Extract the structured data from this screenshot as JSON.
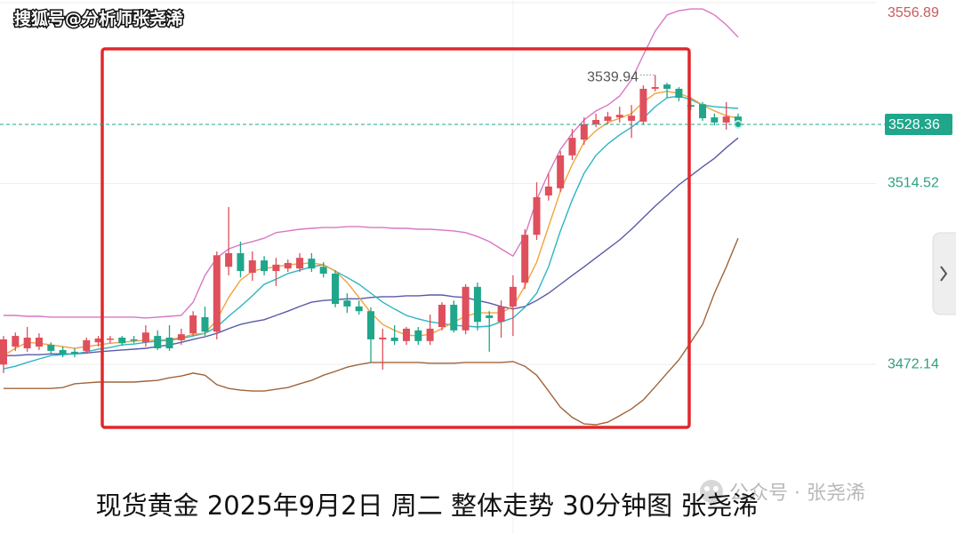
{
  "chart_data": {
    "type": "candlestick",
    "title": "现货黄金 2025年9月2日 周二 整体走势 30分钟图 张尧浠",
    "source_label": "搜狐号@分析师张尧浠",
    "watermark": "公众号 · 张尧浠",
    "ylim": [
      3432.4,
      3557.5
    ],
    "yticks": [
      3556.89,
      3514.52,
      3472.14
    ],
    "grid": true,
    "last_price": 3528.36,
    "high_marker": 3539.94,
    "up_color": "#df4f5c",
    "down_color": "#1fa68b",
    "axis_up_color": "#c95a5a",
    "axis_down_color": "#2e9f80",
    "open": [
      3472.1,
      3476.3,
      3475.9,
      3476.3,
      3476.7,
      3475.5,
      3475.1,
      3475.3,
      3477.3,
      3478.0,
      3478.4,
      3478.0,
      3477.3,
      3478.8,
      3478.4,
      3477.8,
      3479.4,
      3483.2,
      3479.8,
      3495.0,
      3498.2,
      3493.6,
      3496.5,
      3494.0,
      3494.6,
      3494.6,
      3496.9,
      3495.0,
      3493.4,
      3487.1,
      3485.7,
      3484.6,
      3478.0,
      3478.4,
      3477.6,
      3480.1,
      3477.6,
      3480.9,
      3486.1,
      3480.1,
      3490.3,
      3483.6,
      3482.1,
      3485.7,
      3491.3,
      3502.5,
      3511.7,
      3513.4,
      3521.1,
      3524.8,
      3528.4,
      3529.2,
      3530.0,
      3529.2,
      3529.0,
      3536.7,
      3537.7,
      3536.7,
      3532.9,
      3533.1,
      3530.0,
      3528.8,
      3530.2
    ],
    "high": [
      3478.8,
      3479.6,
      3480.9,
      3479.4,
      3477.3,
      3476.3,
      3475.9,
      3478.4,
      3478.8,
      3478.8,
      3478.8,
      3478.8,
      3481.3,
      3480.1,
      3481.3,
      3480.5,
      3484.6,
      3485.7,
      3498.6,
      3509.0,
      3500.9,
      3498.6,
      3497.5,
      3497.1,
      3496.7,
      3498.2,
      3498.2,
      3496.1,
      3494.2,
      3488.8,
      3487.1,
      3485.5,
      3480.5,
      3481.3,
      3480.9,
      3480.9,
      3483.8,
      3486.7,
      3487.1,
      3490.9,
      3491.3,
      3484.6,
      3487.1,
      3493.0,
      3503.8,
      3514.8,
      3516.9,
      3522.1,
      3527.3,
      3530.0,
      3530.9,
      3531.3,
      3532.5,
      3532.9,
      3537.5,
      3539.94,
      3538.1,
      3537.1,
      3534.6,
      3533.6,
      3530.9,
      3533.6,
      3530.9
    ],
    "low": [
      3470.1,
      3475.3,
      3475.1,
      3475.5,
      3474.6,
      3473.8,
      3473.8,
      3474.6,
      3476.3,
      3477.1,
      3476.5,
      3477.1,
      3476.3,
      3475.5,
      3475.3,
      3476.7,
      3478.8,
      3478.8,
      3478.0,
      3493.0,
      3492.5,
      3491.7,
      3493.0,
      3490.5,
      3493.8,
      3493.8,
      3493.8,
      3492.5,
      3485.5,
      3484.2,
      3483.8,
      3472.6,
      3470.9,
      3476.7,
      3476.7,
      3476.7,
      3476.7,
      3480.1,
      3479.6,
      3479.2,
      3480.1,
      3475.1,
      3478.4,
      3478.8,
      3489.8,
      3501.3,
      3510.5,
      3512.5,
      3520.0,
      3523.6,
      3527.7,
      3528.4,
      3528.8,
      3525.2,
      3528.4,
      3536.1,
      3534.6,
      3533.8,
      3531.7,
      3529.2,
      3528.1,
      3527.1,
      3527.9
    ],
    "close": [
      3478.0,
      3478.8,
      3478.4,
      3478.4,
      3475.3,
      3474.6,
      3474.6,
      3477.8,
      3478.2,
      3478.2,
      3477.1,
      3477.8,
      3479.6,
      3475.9,
      3475.9,
      3479.2,
      3483.6,
      3479.8,
      3497.7,
      3498.2,
      3494.0,
      3496.5,
      3494.0,
      3495.5,
      3495.9,
      3497.1,
      3494.6,
      3493.4,
      3486.3,
      3485.7,
      3484.6,
      3478.0,
      3478.4,
      3477.6,
      3480.5,
      3477.6,
      3480.5,
      3486.1,
      3480.1,
      3490.3,
      3482.1,
      3483.0,
      3485.7,
      3490.3,
      3502.5,
      3511.3,
      3513.8,
      3521.1,
      3525.2,
      3528.4,
      3529.4,
      3530.2,
      3530.6,
      3530.4,
      3536.7,
      3537.1,
      3536.7,
      3534.6,
      3532.5,
      3529.8,
      3528.8,
      3530.2,
      3528.4
    ],
    "overlays": [
      {
        "color": "#d877c4",
        "values": [
          3483.6,
          3483.6,
          3483.4,
          3483.4,
          3483.2,
          3483.2,
          3483.2,
          3483.2,
          3483.2,
          3483.2,
          3483.2,
          3483.2,
          3483.0,
          3483.2,
          3483.4,
          3483.6,
          3486.7,
          3493.0,
          3497.1,
          3499.2,
          3500.2,
          3500.9,
          3501.7,
          3503.0,
          3503.4,
          3503.8,
          3504.0,
          3504.2,
          3504.2,
          3504.4,
          3504.4,
          3504.2,
          3504.2,
          3504.0,
          3504.0,
          3503.8,
          3503.8,
          3503.6,
          3503.4,
          3503.0,
          3502.1,
          3500.9,
          3499.2,
          3497.5,
          3502.3,
          3510.7,
          3516.9,
          3522.5,
          3526.3,
          3529.4,
          3531.5,
          3532.9,
          3535.0,
          3538.8,
          3544.6,
          3550.2,
          3554.0,
          3555.0,
          3555.4,
          3555.4,
          3554.0,
          3551.7,
          3548.8
        ]
      },
      {
        "color": "#a0643a",
        "values": [
          3466.5,
          3466.5,
          3466.5,
          3466.5,
          3466.5,
          3466.7,
          3467.6,
          3467.8,
          3468.0,
          3468.0,
          3468.0,
          3468.0,
          3468.2,
          3468.4,
          3469.0,
          3469.4,
          3470.1,
          3469.6,
          3467.4,
          3466.5,
          3466.1,
          3465.9,
          3465.9,
          3466.3,
          3466.7,
          3467.6,
          3468.4,
          3469.6,
          3470.5,
          3471.5,
          3472.1,
          3472.6,
          3472.6,
          3472.6,
          3472.6,
          3472.6,
          3472.4,
          3472.4,
          3472.4,
          3472.6,
          3472.6,
          3472.6,
          3472.6,
          3472.8,
          3471.7,
          3469.6,
          3465.9,
          3462.1,
          3459.7,
          3458.2,
          3458.0,
          3458.6,
          3460.1,
          3461.7,
          3463.8,
          3466.9,
          3470.1,
          3473.2,
          3477.3,
          3481.5,
          3488.8,
          3495.0,
          3501.7
        ]
      },
      {
        "color": "#5a5aa8",
        "values": [
          3474.2,
          3474.2,
          3474.4,
          3474.4,
          3474.6,
          3474.6,
          3474.6,
          3474.8,
          3475.1,
          3475.3,
          3475.5,
          3475.7,
          3475.9,
          3476.3,
          3476.7,
          3477.3,
          3478.0,
          3478.6,
          3479.4,
          3480.5,
          3481.5,
          3482.1,
          3482.6,
          3483.6,
          3484.6,
          3485.7,
          3486.7,
          3487.1,
          3487.3,
          3487.5,
          3487.5,
          3487.8,
          3488.0,
          3488.0,
          3488.2,
          3488.2,
          3488.4,
          3488.4,
          3488.0,
          3487.8,
          3487.1,
          3486.5,
          3485.7,
          3485.1,
          3485.7,
          3487.1,
          3488.8,
          3490.9,
          3493.0,
          3495.0,
          3497.1,
          3499.2,
          3501.3,
          3503.8,
          3506.5,
          3509.2,
          3511.7,
          3514.2,
          3516.3,
          3518.4,
          3520.4,
          3522.9,
          3525.2
        ]
      },
      {
        "color": "#2bb5c4",
        "values": [
          3471.1,
          3471.7,
          3472.6,
          3473.4,
          3474.2,
          3474.4,
          3474.6,
          3475.1,
          3475.7,
          3476.1,
          3476.7,
          3476.9,
          3477.3,
          3477.6,
          3477.8,
          3478.2,
          3478.8,
          3479.4,
          3480.9,
          3483.4,
          3485.7,
          3488.2,
          3490.9,
          3492.1,
          3493.4,
          3494.2,
          3495.0,
          3495.5,
          3494.0,
          3492.5,
          3490.9,
          3488.8,
          3486.7,
          3485.1,
          3483.6,
          3482.8,
          3482.1,
          3481.7,
          3481.3,
          3481.1,
          3480.9,
          3481.1,
          3482.1,
          3483.0,
          3485.5,
          3488.8,
          3495.0,
          3503.4,
          3510.7,
          3516.9,
          3521.1,
          3523.8,
          3525.9,
          3527.7,
          3529.8,
          3532.5,
          3534.6,
          3535.0,
          3534.2,
          3532.9,
          3532.5,
          3532.3,
          3532.1
        ]
      },
      {
        "color": "#f2a33a",
        "values": [
          3474.2,
          3475.9,
          3477.3,
          3477.1,
          3476.7,
          3476.3,
          3475.9,
          3476.3,
          3476.7,
          3477.1,
          3477.3,
          3477.6,
          3477.8,
          3477.8,
          3478.0,
          3478.4,
          3479.2,
          3479.4,
          3482.6,
          3487.8,
          3491.9,
          3494.0,
          3494.6,
          3495.0,
          3495.5,
          3495.7,
          3495.9,
          3495.5,
          3494.0,
          3491.3,
          3487.8,
          3484.2,
          3481.5,
          3480.1,
          3479.0,
          3478.8,
          3479.2,
          3480.5,
          3482.1,
          3483.4,
          3484.2,
          3484.2,
          3484.2,
          3485.7,
          3490.5,
          3496.1,
          3504.4,
          3512.7,
          3519.0,
          3524.2,
          3526.9,
          3528.8,
          3529.8,
          3530.9,
          3533.6,
          3535.6,
          3536.1,
          3535.6,
          3534.6,
          3532.9,
          3531.5,
          3530.4,
          3529.8
        ]
      }
    ]
  }
}
